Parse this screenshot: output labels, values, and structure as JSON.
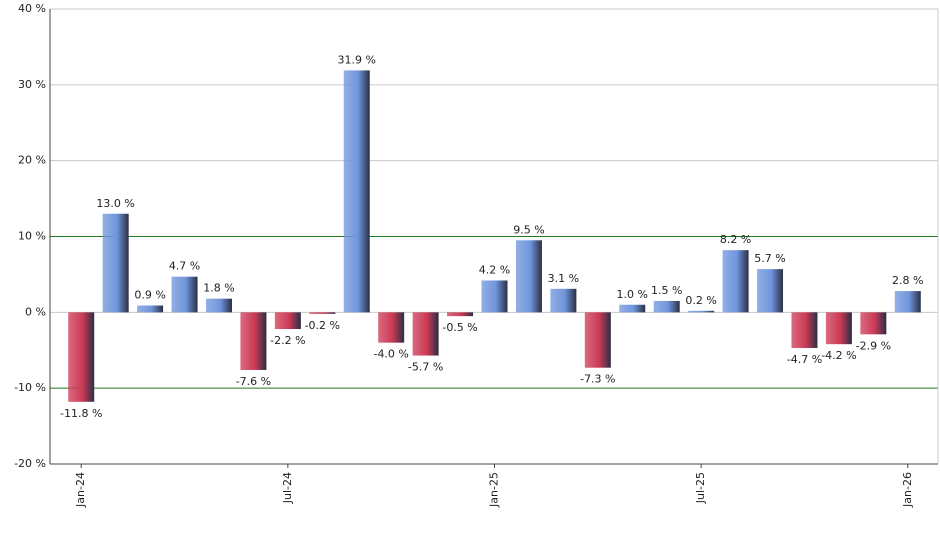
{
  "chart_data": {
    "type": "bar",
    "categories": [
      "Jan-24",
      null,
      null,
      null,
      null,
      null,
      "Jul-24",
      null,
      null,
      null,
      null,
      null,
      "Jan-25",
      null,
      null,
      null,
      null,
      null,
      "Jul-25",
      null,
      null,
      null,
      null,
      null,
      "Jan-26"
    ],
    "values": [
      -11.8,
      13.0,
      0.9,
      4.7,
      1.8,
      -7.6,
      -2.2,
      -0.2,
      31.9,
      -4.0,
      -5.7,
      -0.5,
      4.2,
      9.5,
      3.1,
      -7.3,
      1.0,
      1.5,
      0.2,
      8.2,
      5.7,
      -4.7,
      -4.2,
      -2.9,
      2.8
    ],
    "value_labels": [
      "-11.8 %",
      "13.0 %",
      "0.9 %",
      "4.7 %",
      "1.8 %",
      "-7.6 %",
      "-2.2 %",
      "-0.2 %",
      "31.9 %",
      "-4.0 %",
      "-5.7 %",
      "-0.5 %",
      "4.2 %",
      "9.5 %",
      "3.1 %",
      "-7.3 %",
      "1.0 %",
      "1.5 %",
      "0.2 %",
      "8.2 %",
      "5.7 %",
      "-4.7 %",
      "-4.2 %",
      "-2.9 %",
      "2.8 %"
    ],
    "positive_color": "#6f95dc",
    "negative_color": "#cc3a55",
    "ylim": [
      -20,
      40
    ],
    "yticks": [
      {
        "value": -20,
        "label": "-20 %"
      },
      {
        "value": -10,
        "label": "-10 %"
      },
      {
        "value": 0,
        "label": "0 %"
      },
      {
        "value": 10,
        "label": "10 %"
      },
      {
        "value": 20,
        "label": "20 %"
      },
      {
        "value": 30,
        "label": "30 %"
      },
      {
        "value": 40,
        "label": "40 %"
      }
    ],
    "grid": true,
    "grid_color": "#c8c8c8",
    "reference_lines": [
      10,
      -10
    ],
    "reference_color": "#1e7a1e"
  }
}
